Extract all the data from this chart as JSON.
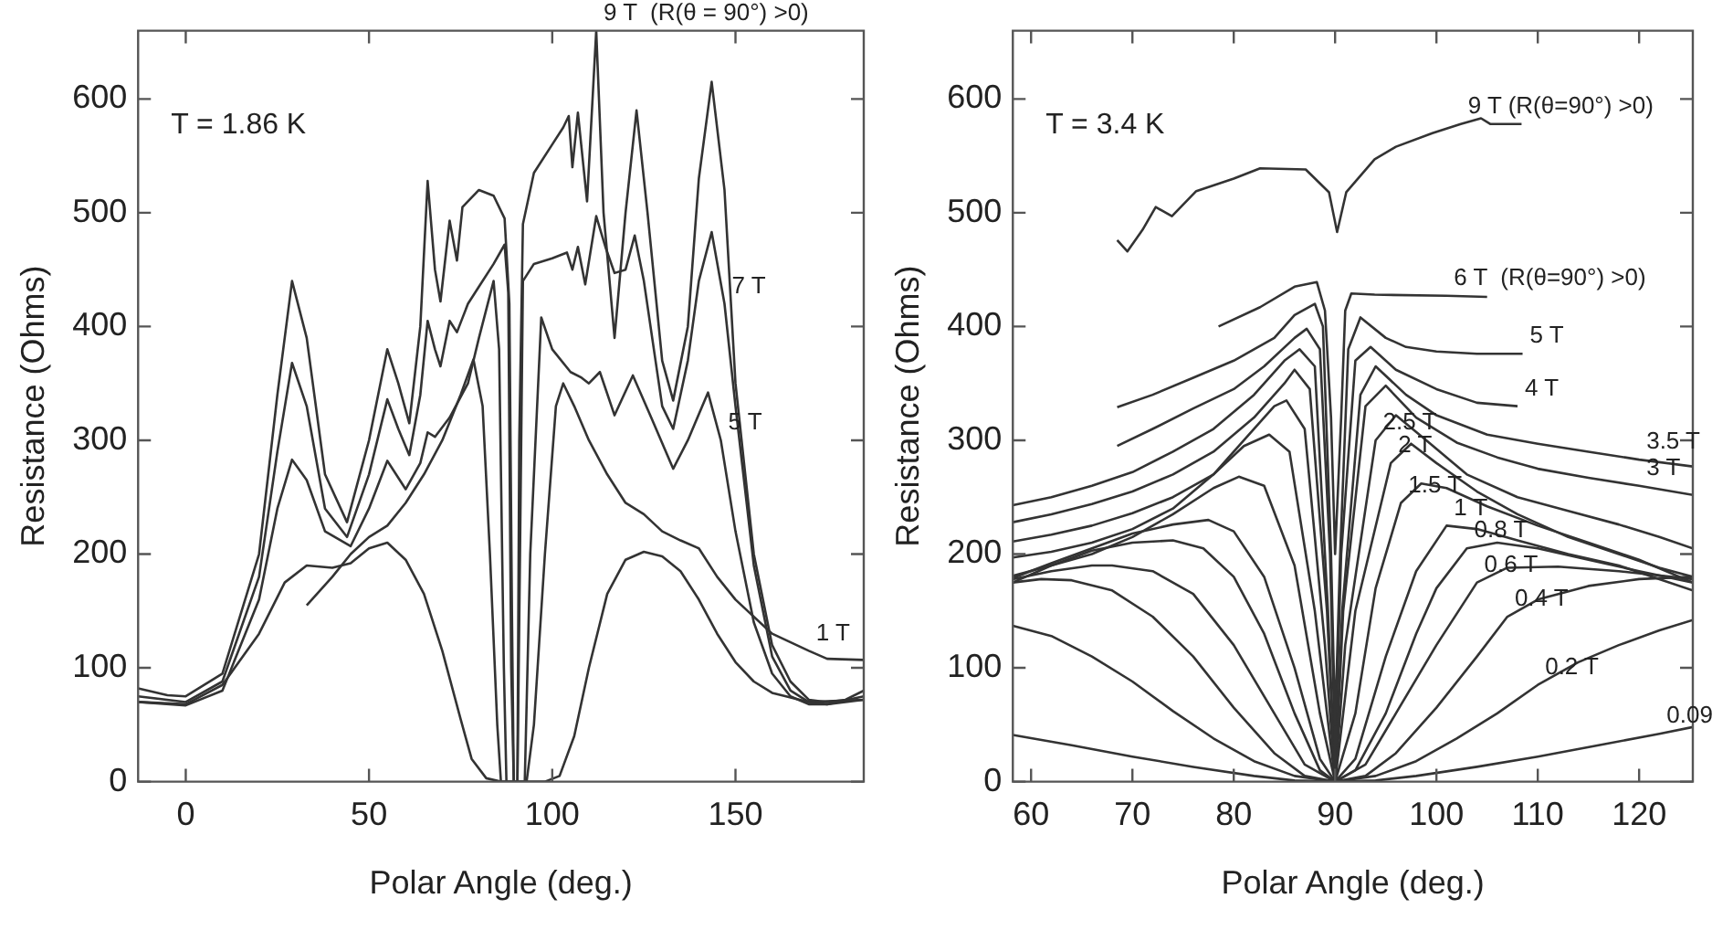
{
  "chart_data": [
    {
      "type": "line",
      "xlabel": "Polar Angle (deg.)",
      "ylabel": "Resistance (Ohms)",
      "xlim": [
        -13,
        185
      ],
      "ylim": [
        0,
        660
      ],
      "xticks": [
        0,
        50,
        100,
        150
      ],
      "yticks": [
        0,
        100,
        200,
        300,
        400,
        500,
        600
      ],
      "annotations": [
        "T = 1.86 K",
        {
          "text": "9 T  (R(θ = 90°) >0)",
          "x": 112,
          "y": 660
        },
        {
          "text": "7 T",
          "x": 147,
          "y": 420
        },
        {
          "text": "5 T",
          "x": 146,
          "y": 300
        },
        {
          "text": "1 T",
          "x": 170,
          "y": 115
        }
      ],
      "series": [
        {
          "color": "#333333",
          "x": [
            -13,
            -5,
            0,
            10,
            20,
            25,
            29,
            33,
            38,
            44,
            50,
            55,
            58,
            61,
            64,
            66,
            68,
            69.5,
            72,
            74,
            75.5,
            77,
            80,
            84,
            87,
            88.3,
            89,
            89.5,
            90.5,
            91,
            92,
            95,
            100,
            103,
            104.5,
            105.5,
            107,
            109.5,
            112,
            114,
            117,
            120,
            123,
            126,
            130,
            133,
            137,
            140,
            143.5,
            147,
            150,
            155,
            160,
            165,
            170,
            175,
            180,
            185
          ],
          "values": [
            82,
            76,
            75,
            95,
            200,
            340,
            440,
            390,
            270,
            228,
            300,
            380,
            350,
            315,
            400,
            528,
            450,
            422,
            493,
            458,
            505,
            510,
            520,
            515,
            495,
            420,
            150,
            0,
            0,
            300,
            490,
            535,
            560,
            575,
            585,
            540,
            588,
            510,
            660,
            500,
            390,
            500,
            590,
            500,
            370,
            335,
            400,
            530,
            615,
            520,
            350,
            200,
            120,
            88,
            72,
            70,
            72,
            80
          ]
        },
        {
          "color": "#333333",
          "x": [
            -13,
            0,
            10,
            20,
            25,
            29,
            33,
            38,
            44,
            50,
            55,
            58,
            61,
            64,
            66,
            68,
            69.5,
            72,
            74,
            77,
            80,
            84,
            87,
            88,
            88.8,
            89.5,
            90.5,
            91.2,
            92,
            95,
            100,
            104,
            105.5,
            107,
            109,
            112,
            114.5,
            117,
            120,
            122.5,
            125,
            130,
            133,
            137,
            140,
            143.5,
            147,
            150,
            155,
            160,
            165,
            170,
            175,
            185
          ],
          "values": [
            75,
            70,
            88,
            180,
            290,
            368,
            330,
            240,
            215,
            270,
            336,
            310,
            287,
            340,
            405,
            380,
            365,
            405,
            395,
            420,
            435,
            455,
            472,
            430,
            100,
            0,
            0,
            200,
            440,
            455,
            460,
            465,
            450,
            470,
            437,
            497,
            470,
            447,
            450,
            480,
            440,
            330,
            310,
            370,
            440,
            483,
            420,
            330,
            190,
            110,
            80,
            70,
            68,
            75
          ]
        },
        {
          "color": "#333333",
          "x": [
            -13,
            0,
            10,
            20,
            25,
            29,
            33,
            38,
            45,
            50,
            55,
            60,
            64,
            66,
            68,
            72,
            77,
            80,
            84,
            85.5,
            86.8,
            87.5,
            92.5,
            94,
            97,
            100,
            105,
            108,
            110,
            113,
            117,
            122,
            127,
            133,
            137,
            142.5,
            146,
            150,
            155,
            160,
            165,
            170,
            175,
            185
          ],
          "values": [
            70,
            67,
            80,
            160,
            240,
            283,
            265,
            220,
            207,
            240,
            282,
            257,
            280,
            307,
            303,
            320,
            350,
            390,
            440,
            380,
            100,
            0,
            0,
            200,
            408,
            380,
            360,
            355,
            350,
            360,
            322,
            357,
            320,
            275,
            300,
            342,
            300,
            220,
            140,
            95,
            75,
            68,
            68,
            72
          ]
        },
        {
          "color": "#333333",
          "x": [
            33,
            40,
            45,
            50,
            55,
            60,
            65,
            70,
            75,
            78.5,
            81,
            83,
            85,
            86,
            93,
            95,
            98,
            101,
            103,
            106,
            110,
            115,
            120,
            125,
            130,
            135,
            140,
            145,
            150,
            160,
            170,
            175,
            185
          ],
          "values": [
            155,
            180,
            200,
            215,
            225,
            245,
            270,
            300,
            340,
            371,
            330,
            200,
            50,
            0,
            0,
            50,
            200,
            330,
            350,
            330,
            300,
            270,
            245,
            235,
            220,
            212,
            205,
            180,
            160,
            130,
            115,
            108,
            107
          ]
        },
        {
          "color": "#333333",
          "x": [
            -13,
            0,
            10,
            20,
            27,
            33,
            40,
            45,
            50,
            55,
            60,
            65,
            70,
            75,
            78,
            82,
            86,
            98,
            102,
            106,
            110,
            115,
            120,
            125,
            130,
            135,
            140,
            145,
            150,
            155,
            160,
            170,
            185
          ],
          "values": [
            70,
            68,
            85,
            130,
            175,
            190,
            188,
            192,
            205,
            210,
            195,
            165,
            115,
            55,
            20,
            3,
            0,
            0,
            5,
            40,
            100,
            165,
            195,
            202,
            198,
            185,
            160,
            130,
            105,
            88,
            78,
            70,
            72
          ]
        }
      ]
    },
    {
      "type": "line",
      "xlabel": "Polar Angle (deg.)",
      "ylabel": "Resistance (Ohms)",
      "xlim": [
        58.2,
        125.3
      ],
      "ylim": [
        0,
        660
      ],
      "xticks": [
        60,
        70,
        80,
        90,
        100,
        110,
        120
      ],
      "yticks": [
        0,
        100,
        200,
        300,
        400,
        500,
        600
      ],
      "annotations": [
        "T = 3.4 K",
        {
          "text": "9 T (R(θ=90°) >0)",
          "x": 102.4,
          "y": 578
        },
        {
          "text": "6 T  (R(θ=90°) >0)",
          "x": 101,
          "y": 427
        },
        {
          "text": "5 T",
          "x": 108.5,
          "y": 376
        },
        {
          "text": "4 T",
          "x": 108,
          "y": 330
        },
        {
          "text": "3.5 T",
          "x": 120,
          "y": 283
        },
        {
          "text": "3 T",
          "x": 120,
          "y": 260
        },
        {
          "text": "2.5 T",
          "x": 94,
          "y": 300
        },
        {
          "text": "2 T",
          "x": 95.5,
          "y": 280
        },
        {
          "text": "1.5 T",
          "x": 96.5,
          "y": 245
        },
        {
          "text": "1 T",
          "x": 101,
          "y": 225
        },
        {
          "text": "0.8 T",
          "x": 103,
          "y": 205
        },
        {
          "text": "0.6 T",
          "x": 104,
          "y": 175
        },
        {
          "text": "0.4 T",
          "x": 107,
          "y": 145
        },
        {
          "text": "0.2 T",
          "x": 110,
          "y": 85
        },
        {
          "text": "0.09",
          "x": 122,
          "y": 42
        }
      ],
      "series": [
        {
          "color": "#333333",
          "x": [
            68.5,
            69.5,
            71,
            72.3,
            73.9,
            76.3,
            80,
            82.6,
            87.1,
            89.4,
            90.2,
            91.1,
            93.9,
            96,
            99.6,
            102.4,
            104.4,
            105.3,
            108.4
          ],
          "values": [
            476,
            466,
            485,
            505,
            497,
            519,
            530,
            539,
            538,
            518,
            483,
            518,
            547,
            558,
            570,
            578,
            583,
            578,
            578
          ]
        },
        {
          "color": "#333333",
          "x": [
            78.5,
            82.6,
            86,
            88.2,
            89,
            89.6,
            90,
            90.6,
            91,
            91.6,
            93.9,
            101,
            105
          ],
          "values": [
            400,
            417,
            435,
            439,
            414,
            320,
            200,
            320,
            414,
            429,
            428,
            427,
            426
          ]
        },
        {
          "color": "#333333",
          "x": [
            68.5,
            72,
            76,
            80,
            84,
            86,
            88,
            88.8,
            89.6,
            90,
            90.5,
            91.3,
            92.5,
            95,
            97,
            100,
            104,
            108.5
          ],
          "values": [
            329,
            340,
            355,
            370,
            390,
            410,
            420,
            400,
            200,
            50,
            200,
            380,
            408,
            390,
            382,
            378,
            376,
            376
          ]
        },
        {
          "color": "#333333",
          "x": [
            68.5,
            72,
            76,
            80,
            83,
            86,
            87.2,
            88.5,
            89.5,
            90,
            90.6,
            92,
            93.5,
            96,
            100,
            104,
            108
          ],
          "values": [
            295,
            310,
            328,
            345,
            365,
            390,
            398,
            380,
            200,
            20,
            200,
            370,
            382,
            362,
            345,
            333,
            330
          ]
        },
        {
          "color": "#333333",
          "x": [
            58.2,
            62,
            66,
            70,
            74,
            78,
            82,
            85,
            86.5,
            88,
            89.3,
            90,
            90.7,
            92.5,
            94,
            97,
            100,
            105,
            110,
            115,
            120,
            125.3
          ],
          "values": [
            243,
            250,
            260,
            272,
            290,
            310,
            340,
            370,
            380,
            365,
            150,
            0,
            150,
            340,
            365,
            340,
            322,
            305,
            297,
            290,
            283,
            277
          ]
        },
        {
          "color": "#333333",
          "x": [
            58.2,
            62,
            66,
            70,
            74,
            78,
            82,
            85,
            86,
            87.5,
            89.2,
            90,
            90.8,
            93,
            95,
            98,
            102,
            106,
            110,
            115,
            120,
            125.3
          ],
          "values": [
            228,
            235,
            244,
            255,
            270,
            290,
            320,
            350,
            362,
            345,
            150,
            0,
            150,
            330,
            348,
            320,
            298,
            285,
            275,
            267,
            260,
            252
          ]
        },
        {
          "color": "#333333",
          "x": [
            58.2,
            62,
            66,
            70,
            74,
            78,
            81,
            84,
            85.2,
            87,
            89,
            90,
            91,
            94,
            96,
            99,
            103,
            108,
            113,
            118,
            122,
            125.3
          ],
          "values": [
            211,
            217,
            225,
            236,
            250,
            270,
            300,
            330,
            335,
            310,
            120,
            0,
            120,
            300,
            322,
            300,
            270,
            250,
            238,
            226,
            215,
            205
          ]
        },
        {
          "color": "#333333",
          "x": [
            58.2,
            62,
            66,
            70,
            74,
            78,
            81,
            83.5,
            85.5,
            88,
            90,
            92,
            95.5,
            97.5,
            100,
            104,
            108,
            113,
            118,
            122,
            125.3
          ],
          "values": [
            197,
            202,
            210,
            222,
            240,
            270,
            295,
            305,
            290,
            150,
            0,
            150,
            280,
            297,
            280,
            255,
            235,
            215,
            200,
            188,
            180
          ]
        },
        {
          "color": "#333333",
          "x": [
            58.2,
            62,
            66,
            70,
            74,
            78,
            80.5,
            83,
            86,
            88.5,
            90,
            92,
            94,
            96.5,
            98.5,
            101,
            105,
            110,
            115,
            120,
            125.3
          ],
          "values": [
            181,
            190,
            200,
            215,
            235,
            258,
            268,
            260,
            190,
            60,
            0,
            60,
            170,
            245,
            262,
            258,
            242,
            225,
            210,
            195,
            175
          ]
        },
        {
          "color": "#333333",
          "x": [
            58.2,
            62,
            66,
            70,
            74,
            77.5,
            80,
            83,
            86,
            88.5,
            90,
            92,
            95,
            98,
            101,
            104,
            108,
            113,
            118,
            122,
            125.3
          ],
          "values": [
            179,
            192,
            205,
            218,
            226,
            230,
            220,
            180,
            100,
            20,
            0,
            20,
            110,
            185,
            225,
            222,
            212,
            200,
            190,
            178,
            168
          ]
        },
        {
          "color": "#333333",
          "x": [
            58.2,
            62,
            66,
            70,
            74,
            77,
            80,
            83,
            86,
            88.5,
            90,
            92,
            95,
            98,
            100,
            103,
            106,
            110,
            115,
            120,
            125.3
          ],
          "values": [
            175,
            190,
            203,
            210,
            212,
            205,
            180,
            130,
            60,
            10,
            0,
            10,
            60,
            130,
            170,
            205,
            210,
            205,
            195,
            185,
            175
          ]
        },
        {
          "color": "#333333",
          "x": [
            58.2,
            62,
            66,
            68,
            72,
            76,
            80,
            84,
            87,
            90,
            93,
            96,
            100,
            104,
            107,
            112,
            118,
            125.3
          ],
          "values": [
            178,
            185,
            190,
            190,
            185,
            165,
            120,
            60,
            15,
            0,
            15,
            60,
            120,
            175,
            188,
            189,
            185,
            178
          ]
        },
        {
          "color": "#333333",
          "x": [
            58.2,
            61,
            64,
            68,
            72,
            76,
            80,
            84,
            87,
            90,
            93,
            96,
            100,
            104,
            107,
            110,
            115,
            120,
            125.3
          ],
          "values": [
            175,
            178,
            177,
            168,
            145,
            110,
            65,
            25,
            5,
            0,
            5,
            25,
            65,
            110,
            145,
            160,
            172,
            178,
            180
          ]
        },
        {
          "color": "#333333",
          "x": [
            58.2,
            62,
            66,
            70,
            74,
            78,
            82,
            86,
            90,
            94,
            98,
            102,
            106,
            110,
            114,
            118,
            122,
            125.3
          ],
          "values": [
            137,
            128,
            110,
            88,
            62,
            38,
            18,
            5,
            0,
            5,
            18,
            38,
            60,
            85,
            105,
            120,
            133,
            142
          ]
        },
        {
          "color": "#333333",
          "x": [
            58.2,
            64,
            70,
            76,
            82,
            86,
            90,
            94,
            98,
            104,
            110,
            116,
            122,
            125.3
          ],
          "values": [
            41,
            32,
            22,
            13,
            5,
            1,
            0,
            1,
            5,
            13,
            22,
            32,
            42,
            48
          ]
        }
      ]
    }
  ]
}
